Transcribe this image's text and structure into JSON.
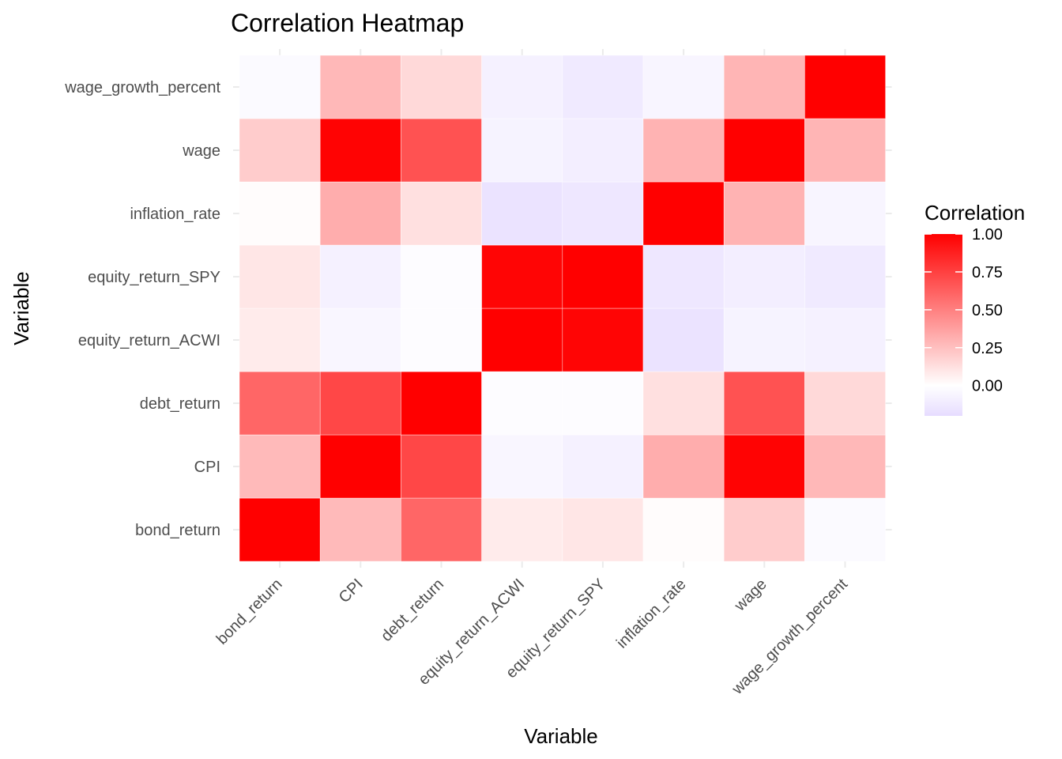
{
  "chart_data": {
    "type": "heatmap",
    "title": "Correlation Heatmap",
    "xlabel": "Variable",
    "ylabel": "Variable",
    "x_categories": [
      "bond_return",
      "CPI",
      "debt_return",
      "equity_return_ACWI",
      "equity_return_SPY",
      "inflation_rate",
      "wage",
      "wage_growth_percent"
    ],
    "y_categories": [
      "bond_return",
      "CPI",
      "debt_return",
      "equity_return_ACWI",
      "equity_return_SPY",
      "inflation_rate",
      "wage",
      "wage_growth_percent"
    ],
    "values": [
      [
        1.0,
        0.27,
        0.6,
        0.08,
        0.1,
        0.01,
        0.2,
        -0.03
      ],
      [
        0.27,
        1.0,
        0.72,
        -0.05,
        -0.08,
        0.32,
        0.99,
        0.28
      ],
      [
        0.6,
        0.72,
        1.0,
        -0.02,
        -0.02,
        0.12,
        0.68,
        0.15
      ],
      [
        0.08,
        -0.05,
        -0.02,
        1.0,
        0.98,
        -0.16,
        -0.07,
        -0.08
      ],
      [
        0.1,
        -0.08,
        -0.02,
        0.98,
        1.0,
        -0.14,
        -0.1,
        -0.12
      ],
      [
        0.01,
        0.32,
        0.12,
        -0.16,
        -0.14,
        1.0,
        0.3,
        -0.06
      ],
      [
        0.2,
        0.99,
        0.68,
        -0.07,
        -0.1,
        0.3,
        1.0,
        0.29
      ],
      [
        -0.03,
        0.28,
        0.15,
        -0.08,
        -0.12,
        -0.06,
        0.29,
        1.0
      ]
    ],
    "legend": {
      "title": "Correlation",
      "position": "right",
      "breaks": [
        1.0,
        0.75,
        0.5,
        0.25,
        0.0
      ],
      "break_labels": [
        "1.00",
        "0.75",
        "0.50",
        "0.25",
        "0.00"
      ],
      "limits": [
        -0.2,
        1.0
      ],
      "low_color": "#e6dcff",
      "mid_color": "#ffffff",
      "high_color": "#ff0000"
    },
    "grid": true
  }
}
